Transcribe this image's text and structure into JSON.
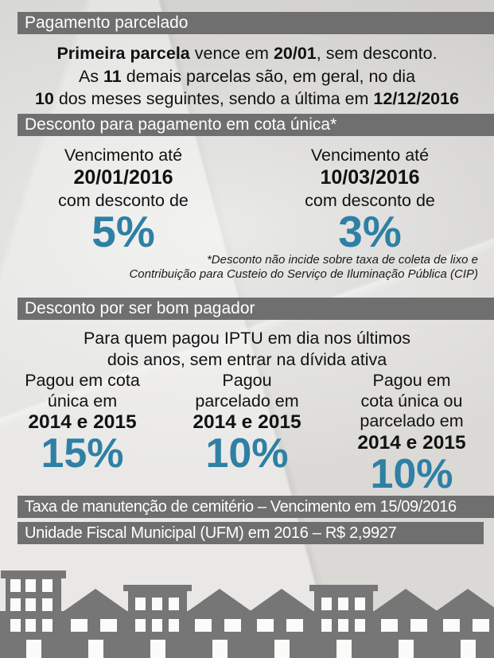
{
  "palette": {
    "paper": "#dad9d6",
    "bar-gray": "#6f6f6f",
    "bar-text": "#ffffff",
    "text": "#121212",
    "accent-teal": "#2e80a4",
    "building-gray": "#767676"
  },
  "icons": {
    "skyline": "city-buildings-skyline-silhouette"
  },
  "installment": {
    "header": "Pagamento parcelado",
    "lines": [
      [
        {
          "t": "Primeira parcela",
          "b": true
        },
        {
          "t": " vence em ",
          "b": false
        },
        {
          "t": "20/01",
          "b": true
        },
        {
          "t": ", sem desconto.",
          "b": false
        }
      ],
      [
        {
          "t": "As ",
          "b": false
        },
        {
          "t": "11",
          "b": true
        },
        {
          "t": " demais parcelas são, em geral, no dia",
          "b": false
        }
      ],
      [
        {
          "t": "10",
          "b": true
        },
        {
          "t": " dos meses seguintes, sendo a última em ",
          "b": false
        },
        {
          "t": "12/12/2016",
          "b": true
        }
      ]
    ]
  },
  "cota_unica": {
    "header": "Desconto para pagamento em cota única*",
    "columns": [
      {
        "label": "Vencimento até",
        "date": "20/01/2016",
        "sublabel": "com desconto de",
        "percent": "5%"
      },
      {
        "label": "Vencimento até",
        "date": "10/03/2016",
        "sublabel": "com desconto de",
        "percent": "3%"
      }
    ],
    "footnote_lines": [
      "*Desconto não incide sobre taxa de coleta de lixo e",
      "Contribuição para Custeio do Serviço de Iluminação Pública (CIP)"
    ]
  },
  "bom_pagador": {
    "header": "Desconto por ser bom pagador",
    "intro_lines": [
      "Para quem pagou IPTU em dia nos últimos",
      "dois anos, sem entrar na dívida ativa"
    ],
    "columns": [
      {
        "label_lines": [
          "Pagou em cota",
          "única em"
        ],
        "years": "2014 e 2015",
        "percent": "15%"
      },
      {
        "label_lines": [
          "Pagou",
          "parcelado em"
        ],
        "years": "2014 e 2015",
        "percent": "10%"
      },
      {
        "label_lines": [
          "Pagou em",
          "cota única ou",
          "parcelado em"
        ],
        "years": "2014 e 2015",
        "percent": "10%"
      }
    ]
  },
  "footer_bars": [
    "Taxa de manutenção de cemitério – Vencimento em 15/09/2016",
    "Unidade Fiscal Municipal (UFM) em 2016 – R$ 2,9927"
  ]
}
